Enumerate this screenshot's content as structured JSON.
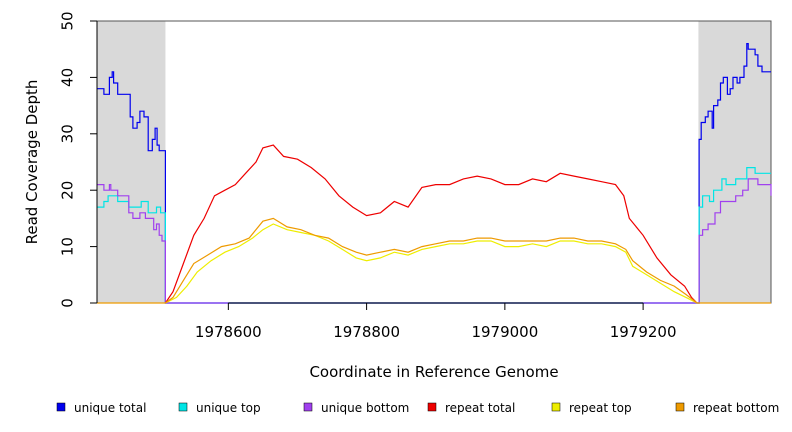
{
  "chart_data": {
    "type": "line",
    "title": "",
    "xlabel": "Coordinate in Reference Genome",
    "ylabel": "Read Coverage Depth",
    "xlim": [
      1978410,
      1979385
    ],
    "ylim": [
      0,
      50
    ],
    "xticks": [
      1978600,
      1978800,
      1979000,
      1979200
    ],
    "xtick_labels": [
      "1978600",
      "1978800",
      "1979000",
      "1979200"
    ],
    "yticks": [
      0,
      10,
      20,
      30,
      40,
      50
    ],
    "ytick_labels": [
      "0",
      "10",
      "20",
      "30",
      "40",
      "50"
    ],
    "shaded_regions": [
      {
        "x0": 1978410,
        "x1": 1978509
      },
      {
        "x0": 1979280,
        "x1": 1979385
      }
    ],
    "legend_position": "bottom",
    "series": [
      {
        "name": "unique total",
        "color": "#0000ee",
        "style": "step",
        "points": [
          [
            1978410,
            38
          ],
          [
            1978420,
            37
          ],
          [
            1978428,
            40
          ],
          [
            1978432,
            41
          ],
          [
            1978434,
            39
          ],
          [
            1978440,
            37
          ],
          [
            1978458,
            33
          ],
          [
            1978462,
            31
          ],
          [
            1978468,
            32
          ],
          [
            1978472,
            34
          ],
          [
            1978478,
            33
          ],
          [
            1978484,
            27
          ],
          [
            1978490,
            29
          ],
          [
            1978494,
            31
          ],
          [
            1978497,
            28
          ],
          [
            1978500,
            27
          ],
          [
            1978508,
            27
          ],
          [
            1978509,
            0
          ],
          [
            1978600,
            0
          ],
          [
            1978800,
            0
          ],
          [
            1979000,
            0
          ],
          [
            1979200,
            0
          ],
          [
            1979280,
            0
          ],
          [
            1979281,
            29
          ],
          [
            1979284,
            32
          ],
          [
            1979290,
            33
          ],
          [
            1979294,
            34
          ],
          [
            1979300,
            31
          ],
          [
            1979302,
            35
          ],
          [
            1979308,
            36
          ],
          [
            1979312,
            39
          ],
          [
            1979316,
            40
          ],
          [
            1979322,
            37
          ],
          [
            1979326,
            38
          ],
          [
            1979330,
            40
          ],
          [
            1979336,
            39
          ],
          [
            1979340,
            40
          ],
          [
            1979346,
            42
          ],
          [
            1979350,
            46
          ],
          [
            1979352,
            45
          ],
          [
            1979362,
            44
          ],
          [
            1979366,
            42
          ],
          [
            1979372,
            41
          ],
          [
            1979385,
            41
          ]
        ]
      },
      {
        "name": "unique top",
        "color": "#00e5e5",
        "style": "step",
        "points": [
          [
            1978410,
            17
          ],
          [
            1978420,
            18
          ],
          [
            1978426,
            19
          ],
          [
            1978440,
            18
          ],
          [
            1978456,
            17
          ],
          [
            1978466,
            17
          ],
          [
            1978474,
            18
          ],
          [
            1978484,
            16
          ],
          [
            1978496,
            17
          ],
          [
            1978502,
            16
          ],
          [
            1978509,
            0
          ],
          [
            1979280,
            0
          ],
          [
            1979281,
            17
          ],
          [
            1979286,
            19
          ],
          [
            1979296,
            18
          ],
          [
            1979302,
            20
          ],
          [
            1979314,
            22
          ],
          [
            1979320,
            21
          ],
          [
            1979334,
            22
          ],
          [
            1979350,
            24
          ],
          [
            1979362,
            23
          ],
          [
            1979385,
            23
          ]
        ]
      },
      {
        "name": "unique bottom",
        "color": "#a040ee",
        "style": "step",
        "points": [
          [
            1978410,
            21
          ],
          [
            1978420,
            20
          ],
          [
            1978428,
            21
          ],
          [
            1978430,
            20
          ],
          [
            1978440,
            19
          ],
          [
            1978456,
            16
          ],
          [
            1978462,
            15
          ],
          [
            1978472,
            16
          ],
          [
            1978480,
            15
          ],
          [
            1978492,
            13
          ],
          [
            1978496,
            14
          ],
          [
            1978500,
            12
          ],
          [
            1978504,
            11
          ],
          [
            1978509,
            0
          ],
          [
            1979280,
            0
          ],
          [
            1979281,
            12
          ],
          [
            1979286,
            13
          ],
          [
            1979294,
            14
          ],
          [
            1979304,
            16
          ],
          [
            1979312,
            18
          ],
          [
            1979324,
            18
          ],
          [
            1979334,
            19
          ],
          [
            1979344,
            20
          ],
          [
            1979352,
            22
          ],
          [
            1979366,
            21
          ],
          [
            1979385,
            19
          ]
        ]
      },
      {
        "name": "repeat total",
        "color": "#ee0000",
        "style": "line",
        "points": [
          [
            1978509,
            0
          ],
          [
            1978520,
            2
          ],
          [
            1978535,
            7
          ],
          [
            1978550,
            12
          ],
          [
            1978565,
            15
          ],
          [
            1978580,
            19
          ],
          [
            1978595,
            20
          ],
          [
            1978610,
            21
          ],
          [
            1978625,
            23
          ],
          [
            1978640,
            25
          ],
          [
            1978650,
            27.5
          ],
          [
            1978665,
            28
          ],
          [
            1978680,
            26
          ],
          [
            1978700,
            25.5
          ],
          [
            1978720,
            24
          ],
          [
            1978740,
            22
          ],
          [
            1978760,
            19
          ],
          [
            1978780,
            17
          ],
          [
            1978800,
            15.5
          ],
          [
            1978820,
            16
          ],
          [
            1978840,
            18
          ],
          [
            1978860,
            17
          ],
          [
            1978880,
            20.5
          ],
          [
            1978900,
            21
          ],
          [
            1978920,
            21
          ],
          [
            1978940,
            22
          ],
          [
            1978960,
            22.5
          ],
          [
            1978980,
            22
          ],
          [
            1979000,
            21
          ],
          [
            1979020,
            21
          ],
          [
            1979040,
            22
          ],
          [
            1979060,
            21.5
          ],
          [
            1979080,
            23
          ],
          [
            1979100,
            22.5
          ],
          [
            1979120,
            22
          ],
          [
            1979140,
            21.5
          ],
          [
            1979160,
            21
          ],
          [
            1979172,
            19
          ],
          [
            1979180,
            15
          ],
          [
            1979200,
            12
          ],
          [
            1979220,
            8
          ],
          [
            1979240,
            5
          ],
          [
            1979260,
            3
          ],
          [
            1979270,
            1
          ],
          [
            1979278,
            0
          ]
        ]
      },
      {
        "name": "repeat top",
        "color": "#eeee00",
        "style": "line",
        "points": [
          [
            1978509,
            0
          ],
          [
            1978525,
            1
          ],
          [
            1978540,
            3
          ],
          [
            1978555,
            5.5
          ],
          [
            1978575,
            7.5
          ],
          [
            1978595,
            9
          ],
          [
            1978615,
            10
          ],
          [
            1978635,
            11.5
          ],
          [
            1978650,
            13
          ],
          [
            1978665,
            14
          ],
          [
            1978685,
            13
          ],
          [
            1978705,
            12.5
          ],
          [
            1978725,
            12
          ],
          [
            1978745,
            11
          ],
          [
            1978765,
            9.5
          ],
          [
            1978785,
            8
          ],
          [
            1978800,
            7.5
          ],
          [
            1978820,
            8
          ],
          [
            1978840,
            9
          ],
          [
            1978860,
            8.5
          ],
          [
            1978880,
            9.5
          ],
          [
            1978900,
            10
          ],
          [
            1978920,
            10.5
          ],
          [
            1978940,
            10.5
          ],
          [
            1978960,
            11
          ],
          [
            1978980,
            11
          ],
          [
            1979000,
            10
          ],
          [
            1979020,
            10
          ],
          [
            1979040,
            10.5
          ],
          [
            1979060,
            10
          ],
          [
            1979080,
            11
          ],
          [
            1979100,
            11
          ],
          [
            1979120,
            10.5
          ],
          [
            1979140,
            10.5
          ],
          [
            1979160,
            10
          ],
          [
            1979175,
            9
          ],
          [
            1979185,
            6.5
          ],
          [
            1979205,
            5
          ],
          [
            1979225,
            3.5
          ],
          [
            1979245,
            2
          ],
          [
            1979262,
            1
          ],
          [
            1979278,
            0
          ]
        ]
      },
      {
        "name": "repeat bottom",
        "color": "#ee9a00",
        "style": "line",
        "points": [
          [
            1978410,
            0
          ],
          [
            1978509,
            0
          ],
          [
            1978520,
            1
          ],
          [
            1978535,
            4
          ],
          [
            1978550,
            7
          ],
          [
            1978570,
            8.5
          ],
          [
            1978590,
            10
          ],
          [
            1978610,
            10.5
          ],
          [
            1978630,
            11.5
          ],
          [
            1978650,
            14.5
          ],
          [
            1978665,
            15
          ],
          [
            1978685,
            13.5
          ],
          [
            1978705,
            13
          ],
          [
            1978725,
            12
          ],
          [
            1978745,
            11.5
          ],
          [
            1978765,
            10
          ],
          [
            1978785,
            9
          ],
          [
            1978800,
            8.5
          ],
          [
            1978820,
            9
          ],
          [
            1978840,
            9.5
          ],
          [
            1978860,
            9
          ],
          [
            1978880,
            10
          ],
          [
            1978900,
            10.5
          ],
          [
            1978920,
            11
          ],
          [
            1978940,
            11
          ],
          [
            1978960,
            11.5
          ],
          [
            1978980,
            11.5
          ],
          [
            1979000,
            11
          ],
          [
            1979020,
            11
          ],
          [
            1979040,
            11
          ],
          [
            1979060,
            11
          ],
          [
            1979080,
            11.5
          ],
          [
            1979100,
            11.5
          ],
          [
            1979120,
            11
          ],
          [
            1979140,
            11
          ],
          [
            1979160,
            10.5
          ],
          [
            1979175,
            9.5
          ],
          [
            1979185,
            7.5
          ],
          [
            1979205,
            5.5
          ],
          [
            1979225,
            4
          ],
          [
            1979245,
            3
          ],
          [
            1979262,
            1.5
          ],
          [
            1979278,
            0
          ],
          [
            1979385,
            0
          ]
        ]
      }
    ]
  }
}
